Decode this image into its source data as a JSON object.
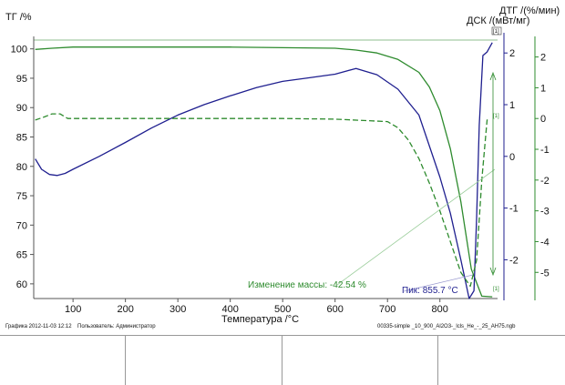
{
  "chart_data": {
    "type": "line",
    "xlabel": "Температура /°C",
    "x_ticks": [
      100,
      200,
      300,
      400,
      500,
      600,
      700,
      800
    ],
    "xlim": [
      25,
      910
    ],
    "axes": {
      "tg": {
        "label": "ТГ /%",
        "ticks": [
          60,
          65,
          70,
          75,
          80,
          85,
          90,
          95,
          100
        ],
        "ylim": [
          57.5,
          101.5
        ]
      },
      "dsc": {
        "label": "ДСК /(мВт/мг)",
        "ticks": [
          -2,
          -1,
          0,
          1,
          2
        ],
        "ylim": [
          -2.75,
          2.25
        ]
      },
      "dtg": {
        "label": "ДТГ /(%/мин)",
        "ticks": [
          -5,
          -4,
          -3,
          -2,
          -1,
          0,
          1,
          2
        ],
        "ylim": [
          -5.85,
          2.55
        ]
      }
    },
    "series": [
      {
        "name": "ТГ",
        "axis": "tg",
        "color": "#2e8b2e",
        "style": "solid",
        "x": [
          28,
          60,
          100,
          200,
          300,
          400,
          500,
          600,
          640,
          680,
          720,
          760,
          780,
          800,
          820,
          840,
          860,
          880,
          900
        ],
        "y": [
          99.9,
          100.1,
          100.3,
          100.3,
          100.3,
          100.3,
          100.2,
          100.1,
          99.8,
          99.3,
          98.2,
          96.0,
          93.5,
          89.5,
          83.0,
          74.0,
          62.5,
          57.9,
          57.8
        ]
      },
      {
        "name": "ДСК",
        "axis": "dsc",
        "color": "#1f1f8f",
        "style": "solid",
        "x": [
          28,
          40,
          55,
          70,
          85,
          100,
          150,
          200,
          250,
          300,
          350,
          400,
          450,
          500,
          550,
          600,
          640,
          680,
          720,
          760,
          800,
          820,
          840,
          855.7,
          865,
          870,
          875,
          882,
          890,
          900
        ],
        "y": [
          -0.05,
          -0.25,
          -0.35,
          -0.37,
          -0.33,
          -0.25,
          0.0,
          0.27,
          0.55,
          0.8,
          1.0,
          1.17,
          1.33,
          1.45,
          1.52,
          1.59,
          1.7,
          1.58,
          1.3,
          0.8,
          -0.4,
          -1.1,
          -2.0,
          -2.75,
          -2.6,
          -1.2,
          0.6,
          1.95,
          2.02,
          2.2
        ]
      },
      {
        "name": "ДТГ",
        "axis": "dtg",
        "color": "#2e8b2e",
        "style": "dashed",
        "x": [
          28,
          45,
          60,
          75,
          90,
          110,
          200,
          300,
          400,
          500,
          600,
          700,
          720,
          740,
          760,
          780,
          800,
          820,
          840,
          858,
          870,
          880,
          890,
          895
        ],
        "y": [
          -0.05,
          0.05,
          0.15,
          0.15,
          0.0,
          0.0,
          0.0,
          0.0,
          0.0,
          0.0,
          -0.02,
          -0.1,
          -0.3,
          -0.7,
          -1.3,
          -2.1,
          -3.0,
          -4.0,
          -5.0,
          -5.45,
          -4.6,
          -2.0,
          -0.05,
          0.0
        ]
      }
    ],
    "annotations": {
      "mass_change": "Изменение массы: -42.54 %",
      "peak": "Пик: 855.7 °C",
      "marker_1a": "[1]",
      "marker_1b": "[1]",
      "stack_marker": "[1]"
    },
    "footer": {
      "graphic_date": "Графика   2012-11-03 12:12",
      "user": "Пользователь: Администратор",
      "file": "00335-simple _10_900_Al2O3-_lcls_He_-_25_AH75.ngb"
    }
  }
}
